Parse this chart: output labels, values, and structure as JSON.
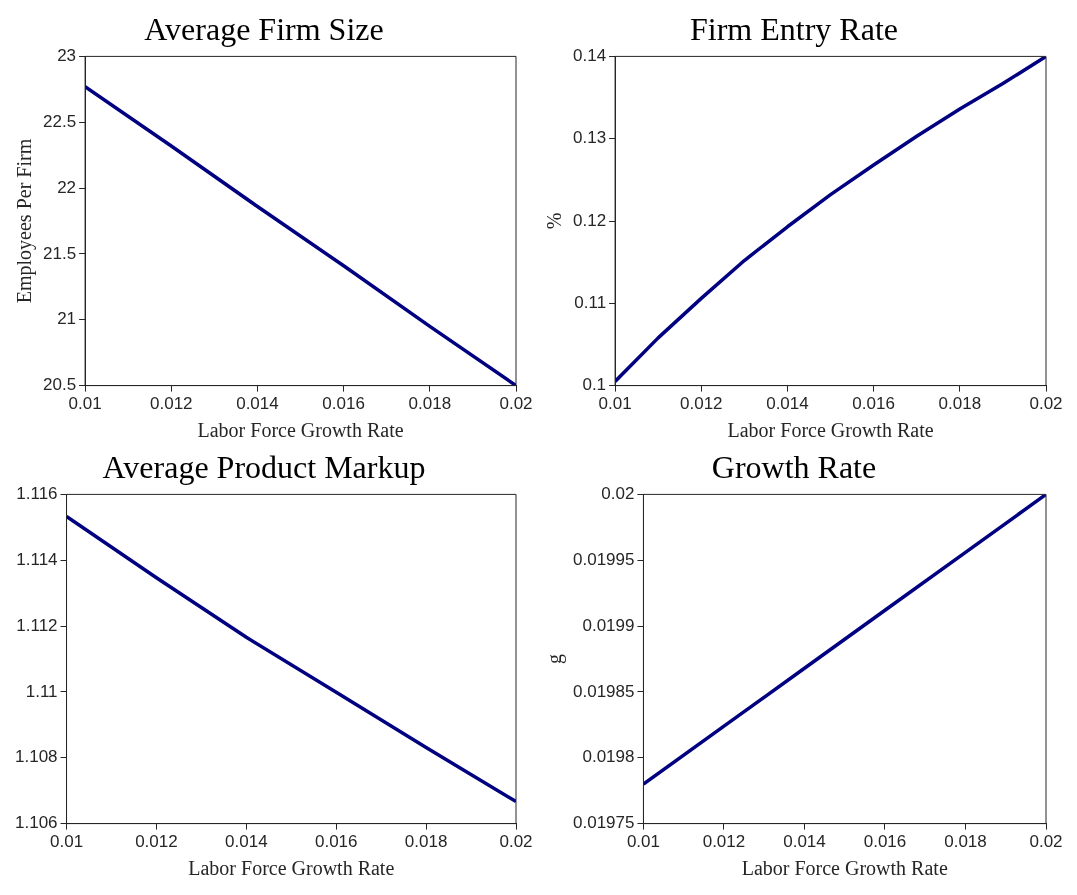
{
  "chart_data": [
    {
      "type": "line",
      "title": "Average Firm Size",
      "xlabel": "Labor Force Growth Rate",
      "ylabel": "Employees Per Firm",
      "x": [
        0.01,
        0.012,
        0.014,
        0.016,
        0.018,
        0.02
      ],
      "series": [
        {
          "color": "#000080",
          "values": [
            22.77,
            22.32,
            21.86,
            21.41,
            20.95,
            20.5
          ]
        }
      ],
      "xlim": [
        0.01,
        0.02
      ],
      "xticks": [
        0.01,
        0.012,
        0.014,
        0.016,
        0.018,
        0.02
      ],
      "ylim": [
        20.5,
        23
      ],
      "yticks": [
        20.5,
        21,
        21.5,
        22,
        22.5,
        23
      ],
      "grid": false,
      "legend": false
    },
    {
      "type": "line",
      "title": "Firm Entry Rate",
      "xlabel": "Labor Force Growth Rate",
      "ylabel": "%",
      "x": [
        0.01,
        0.011,
        0.012,
        0.013,
        0.014,
        0.015,
        0.016,
        0.017,
        0.018,
        0.019,
        0.02
      ],
      "series": [
        {
          "color": "#000080",
          "values": [
            0.1005,
            0.1058,
            0.1106,
            0.1152,
            0.1193,
            0.1232,
            0.1268,
            0.1303,
            0.1336,
            0.1367,
            0.14
          ]
        }
      ],
      "xlim": [
        0.01,
        0.02
      ],
      "xticks": [
        0.01,
        0.012,
        0.014,
        0.016,
        0.018,
        0.02
      ],
      "ylim": [
        0.1,
        0.14
      ],
      "yticks": [
        0.1,
        0.11,
        0.12,
        0.13,
        0.14
      ],
      "grid": false,
      "legend": false
    },
    {
      "type": "line",
      "title": "Average Product Markup",
      "xlabel": "Labor Force Growth Rate",
      "x": [
        0.01,
        0.012,
        0.014,
        0.016,
        0.018,
        0.02
      ],
      "series": [
        {
          "color": "#000080",
          "values": [
            1.11533,
            1.11347,
            1.11166,
            1.10999,
            1.10831,
            1.10667
          ]
        }
      ],
      "xlim": [
        0.01,
        0.02
      ],
      "xticks": [
        0.01,
        0.012,
        0.014,
        0.016,
        0.018,
        0.02
      ],
      "ylim": [
        1.106,
        1.116
      ],
      "yticks": [
        1.106,
        1.108,
        1.11,
        1.112,
        1.114,
        1.116
      ],
      "grid": false,
      "legend": false
    },
    {
      "type": "line",
      "title": "Growth Rate",
      "xlabel": "Labor Force Growth Rate",
      "ylabel": "g",
      "x": [
        0.01,
        0.012,
        0.014,
        0.016,
        0.018,
        0.02
      ],
      "series": [
        {
          "color": "#000080",
          "values": [
            0.01978,
            0.019824,
            0.019868,
            0.019912,
            0.019956,
            0.02
          ]
        }
      ],
      "xlim": [
        0.01,
        0.02
      ],
      "xticks": [
        0.01,
        0.012,
        0.014,
        0.016,
        0.018,
        0.02
      ],
      "ylim": [
        0.01975,
        0.02
      ],
      "yticks": [
        0.01975,
        0.0198,
        0.01985,
        0.0199,
        0.01995,
        0.02
      ],
      "grid": false,
      "legend": false
    }
  ]
}
